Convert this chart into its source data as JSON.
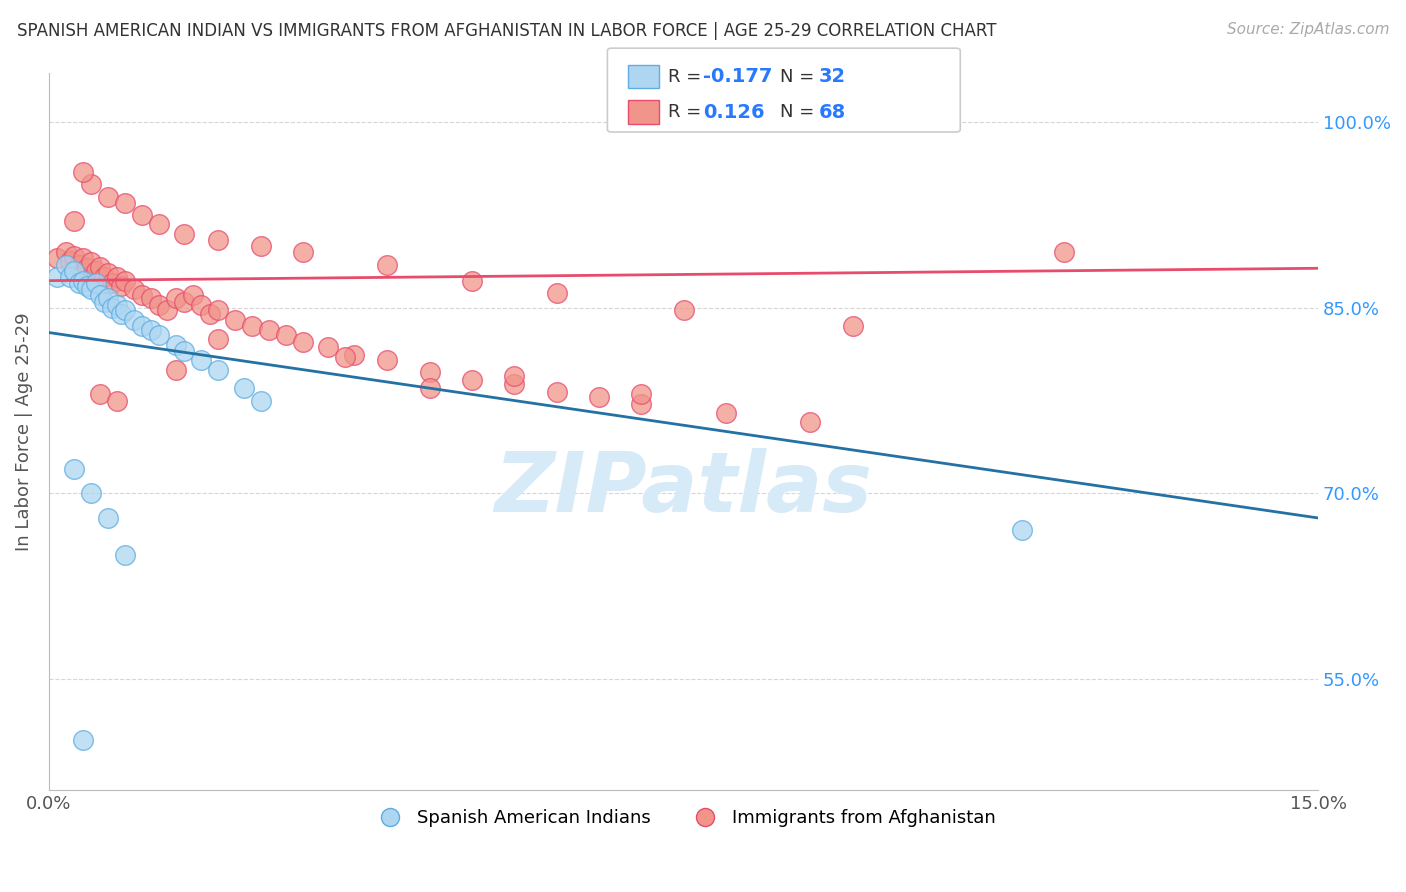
{
  "title": "SPANISH AMERICAN INDIAN VS IMMIGRANTS FROM AFGHANISTAN IN LABOR FORCE | AGE 25-29 CORRELATION CHART",
  "source": "Source: ZipAtlas.com",
  "ylabel": "In Labor Force | Age 25-29",
  "legend_label1": "Spanish American Indians",
  "legend_label2": "Immigrants from Afghanistan",
  "R1": -0.177,
  "N1": 32,
  "R2": 0.126,
  "N2": 68,
  "xmin": 0.0,
  "xmax": 15.0,
  "ymin": 0.46,
  "ymax": 1.04,
  "yticks": [
    0.55,
    0.7,
    0.85,
    1.0
  ],
  "ytick_labels": [
    "55.0%",
    "70.0%",
    "85.0%",
    "100.0%"
  ],
  "xticks": [
    0.0,
    3.0,
    6.0,
    9.0,
    12.0,
    15.0
  ],
  "xtick_labels": [
    "0.0%",
    "",
    "",
    "",
    "",
    "15.0%"
  ],
  "blue_fill": "#AED6F1",
  "blue_edge": "#5DADE2",
  "pink_fill": "#F1948A",
  "pink_edge": "#E74C6C",
  "blue_line_color": "#2471A3",
  "pink_line_color": "#CB4335",
  "blue_scatter_x": [
    0.1,
    0.2,
    0.25,
    0.3,
    0.35,
    0.4,
    0.45,
    0.5,
    0.55,
    0.6,
    0.65,
    0.7,
    0.75,
    0.8,
    0.85,
    0.9,
    1.0,
    1.1,
    1.2,
    1.3,
    1.5,
    1.6,
    1.8,
    2.0,
    2.3,
    2.5,
    0.3,
    0.5,
    0.7,
    0.9,
    11.5,
    0.4
  ],
  "blue_scatter_y": [
    0.875,
    0.885,
    0.875,
    0.88,
    0.87,
    0.872,
    0.868,
    0.865,
    0.87,
    0.86,
    0.855,
    0.858,
    0.85,
    0.852,
    0.845,
    0.848,
    0.84,
    0.835,
    0.832,
    0.828,
    0.82,
    0.815,
    0.808,
    0.8,
    0.785,
    0.775,
    0.72,
    0.7,
    0.68,
    0.65,
    0.67,
    0.5
  ],
  "pink_scatter_x": [
    0.1,
    0.2,
    0.25,
    0.3,
    0.35,
    0.4,
    0.45,
    0.5,
    0.55,
    0.6,
    0.65,
    0.7,
    0.75,
    0.8,
    0.85,
    0.9,
    1.0,
    1.1,
    1.2,
    1.3,
    1.4,
    1.5,
    1.6,
    1.7,
    1.8,
    1.9,
    2.0,
    2.2,
    2.4,
    2.6,
    2.8,
    3.0,
    3.3,
    3.6,
    4.0,
    4.5,
    5.0,
    5.5,
    6.0,
    6.5,
    7.0,
    8.0,
    9.0,
    0.3,
    0.5,
    0.7,
    0.9,
    1.1,
    1.3,
    1.6,
    2.0,
    2.5,
    3.0,
    4.0,
    5.0,
    6.0,
    7.5,
    9.5,
    0.4,
    0.6,
    0.8,
    3.5,
    5.5,
    7.0,
    4.5,
    2.0,
    1.5,
    12.0
  ],
  "pink_scatter_y": [
    0.89,
    0.895,
    0.888,
    0.892,
    0.885,
    0.89,
    0.882,
    0.887,
    0.88,
    0.883,
    0.875,
    0.878,
    0.87,
    0.875,
    0.868,
    0.872,
    0.865,
    0.86,
    0.858,
    0.852,
    0.848,
    0.858,
    0.855,
    0.86,
    0.852,
    0.845,
    0.848,
    0.84,
    0.835,
    0.832,
    0.828,
    0.822,
    0.818,
    0.812,
    0.808,
    0.798,
    0.792,
    0.788,
    0.782,
    0.778,
    0.772,
    0.765,
    0.758,
    0.92,
    0.95,
    0.94,
    0.935,
    0.925,
    0.918,
    0.91,
    0.905,
    0.9,
    0.895,
    0.885,
    0.872,
    0.862,
    0.848,
    0.835,
    0.96,
    0.78,
    0.775,
    0.81,
    0.795,
    0.78,
    0.785,
    0.825,
    0.8,
    0.895
  ],
  "watermark_text": "ZIPatlas",
  "watermark_color": "#D6EAF8",
  "background_color": "#FFFFFF",
  "grid_color": "#CCCCCC",
  "blue_trend_x0": 0.0,
  "blue_trend_y0": 0.83,
  "blue_trend_x1": 15.0,
  "blue_trend_y1": 0.68,
  "pink_trend_x0": 0.0,
  "pink_trend_y0": 0.872,
  "pink_trend_x1": 15.0,
  "pink_trend_y1": 0.882
}
